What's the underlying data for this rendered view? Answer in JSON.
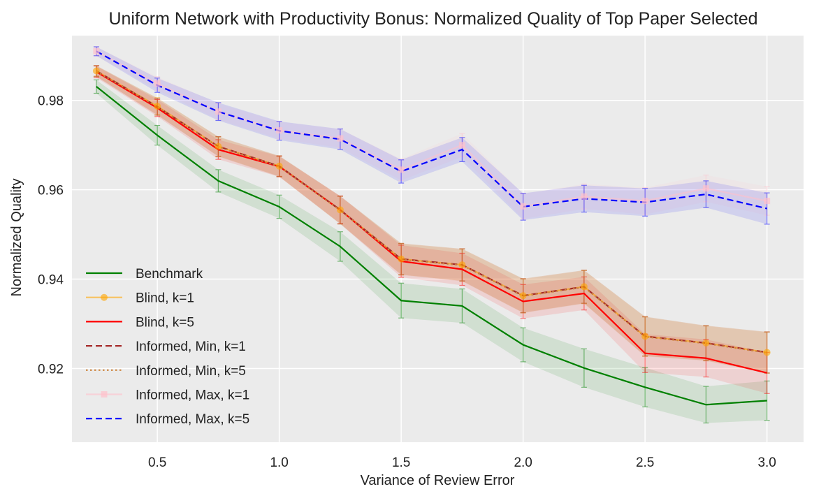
{
  "chart_data": {
    "type": "line",
    "title": "Uniform Network with Productivity Bonus: Normalized Quality of Top Paper Selected",
    "xlabel": "Variance of Review Error",
    "ylabel": "Normalized Quality",
    "xlim": [
      0.15,
      3.15
    ],
    "ylim": [
      0.9035,
      0.9945
    ],
    "xticks": [
      0.5,
      1.0,
      1.5,
      2.0,
      2.5,
      3.0
    ],
    "xtick_labels": [
      "0.5",
      "1.0",
      "1.5",
      "2.0",
      "2.5",
      "3.0"
    ],
    "yticks": [
      0.92,
      0.94,
      0.96,
      0.98
    ],
    "ytick_labels": [
      "0.92",
      "0.94",
      "0.96",
      "0.98"
    ],
    "grid": true,
    "legend_position": "lower-left",
    "x": [
      0.25,
      0.5,
      0.75,
      1.0,
      1.25,
      1.5,
      1.75,
      2.0,
      2.25,
      2.5,
      2.75,
      3.0
    ],
    "series": [
      {
        "name": "Benchmark",
        "color": "#008000",
        "style": "solid",
        "marker": "none",
        "values": [
          0.9831,
          0.9722,
          0.962,
          0.9562,
          0.9473,
          0.9352,
          0.934,
          0.9253,
          0.9201,
          0.9158,
          0.9119,
          0.9128
        ],
        "errors": [
          0.0015,
          0.0022,
          0.0025,
          0.0026,
          0.0033,
          0.0039,
          0.0038,
          0.0038,
          0.0043,
          0.0044,
          0.0041,
          0.0044
        ]
      },
      {
        "name": "Blind, k=1",
        "color": "#FFA500",
        "style": "solid",
        "marker": "circle",
        "values": [
          0.9866,
          0.9787,
          0.9697,
          0.9653,
          0.9555,
          0.9445,
          0.9432,
          0.9363,
          0.9383,
          0.9272,
          0.9257,
          0.9236
        ],
        "errors": [
          0.0012,
          0.0019,
          0.0022,
          0.0023,
          0.0031,
          0.0035,
          0.0036,
          0.0038,
          0.0037,
          0.0044,
          0.0039,
          0.0046
        ]
      },
      {
        "name": "Blind, k=5",
        "color": "#FF0000",
        "style": "solid",
        "marker": "none",
        "values": [
          0.9864,
          0.9783,
          0.969,
          0.9652,
          0.9555,
          0.944,
          0.9422,
          0.935,
          0.9368,
          0.9234,
          0.9223,
          0.919
        ],
        "errors": [
          0.0013,
          0.0019,
          0.0022,
          0.0023,
          0.0031,
          0.0036,
          0.0036,
          0.0038,
          0.0037,
          0.0043,
          0.0042,
          0.0046
        ]
      },
      {
        "name": "Informed, Min, k=1",
        "color": "#A52A2A",
        "style": "dashed",
        "marker": "none",
        "values": [
          0.9866,
          0.9786,
          0.9697,
          0.9653,
          0.9555,
          0.9445,
          0.9432,
          0.9363,
          0.9383,
          0.9272,
          0.9257,
          0.9236
        ],
        "errors": [
          0.0012,
          0.0019,
          0.0022,
          0.0023,
          0.0031,
          0.0035,
          0.0036,
          0.0038,
          0.0037,
          0.0044,
          0.0039,
          0.0046
        ]
      },
      {
        "name": "Informed, Min, k=5",
        "color": "#CD853F",
        "style": "dotted",
        "marker": "none",
        "values": [
          0.9865,
          0.9786,
          0.9696,
          0.9652,
          0.9554,
          0.9444,
          0.9431,
          0.9362,
          0.9382,
          0.9271,
          0.9256,
          0.9235
        ],
        "errors": [
          0.0012,
          0.0019,
          0.0022,
          0.0023,
          0.0031,
          0.0035,
          0.0036,
          0.0038,
          0.0037,
          0.0044,
          0.0039,
          0.0046
        ]
      },
      {
        "name": "Informed, Max, k=1",
        "color": "#FFC0CB",
        "style": "solid",
        "marker": "square",
        "values": [
          0.991,
          0.9838,
          0.9775,
          0.9733,
          0.9715,
          0.9645,
          0.97,
          0.9563,
          0.9585,
          0.9575,
          0.9603,
          0.9575
        ],
        "errors": [
          0.001,
          0.0015,
          0.0018,
          0.0019,
          0.0021,
          0.0024,
          0.0026,
          0.0028,
          0.0028,
          0.003,
          0.003,
          0.0032
        ]
      },
      {
        "name": "Informed, Max, k=5",
        "color": "#0000FF",
        "style": "dashed",
        "marker": "none",
        "values": [
          0.991,
          0.9834,
          0.9775,
          0.9732,
          0.9713,
          0.9641,
          0.969,
          0.9562,
          0.958,
          0.9572,
          0.959,
          0.9558
        ],
        "errors": [
          0.001,
          0.0016,
          0.002,
          0.0021,
          0.0023,
          0.0026,
          0.0027,
          0.003,
          0.003,
          0.0031,
          0.003,
          0.0035
        ]
      }
    ]
  }
}
